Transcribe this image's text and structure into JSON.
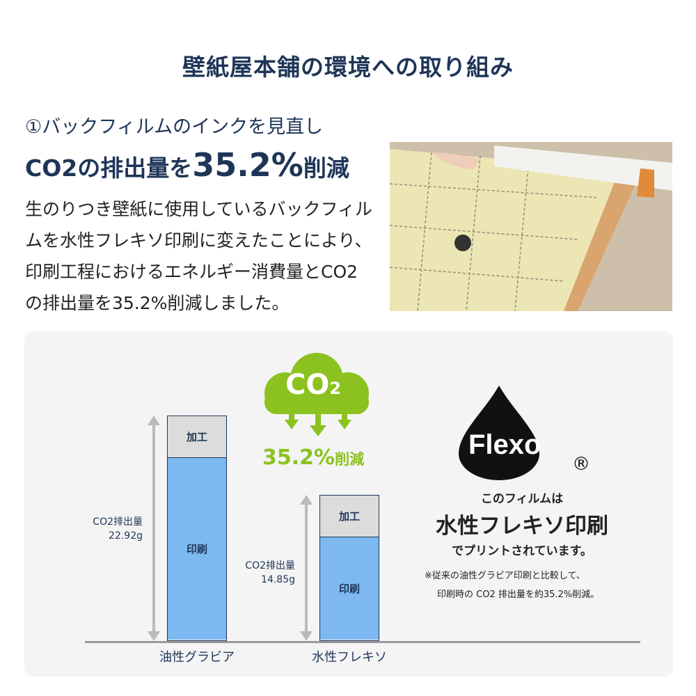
{
  "title": "壁紙屋本舗の環境への取り組み",
  "section": {
    "subtitle": "①バックフィルムのインクを見直し",
    "headline_pre": "CO2の排出量を",
    "headline_value": "35.2%",
    "headline_post": "削減",
    "body": "生のりつき壁紙に使用しているバックフィルムを水性フレキソ印刷に変えたことにより、印刷工程におけるエネルギー消費量とCO2の排出量を35.2%削減しました。"
  },
  "co2_badge": {
    "cloud_text": "CO",
    "cloud_sub": "2",
    "reduction": "35.2%",
    "reduction_suffix": "削減",
    "color": "#8cc21f"
  },
  "flexo": {
    "logo": "Flexo",
    "registered": "®",
    "line1": "このフィルムは",
    "line2": "水性フレキソ印刷",
    "line3": "でプリントされています。",
    "note1": "※従来の油性グラビア印刷と比較して、",
    "note2": "印刷時の CO2 排出量を約35.2%削減。"
  },
  "chart_data": {
    "type": "bar",
    "stacked": true,
    "categories": [
      "油性グラビア",
      "水性フレキソ"
    ],
    "values": [
      22.92,
      14.85
    ],
    "value_labels": [
      "CO2排出量\n22.92g",
      "CO2排出量\n14.85g"
    ],
    "segments": [
      "加工",
      "印刷"
    ],
    "unit": "g",
    "colors": {
      "加工": "#dcdcdc",
      "印刷": "#7db8f0"
    }
  }
}
